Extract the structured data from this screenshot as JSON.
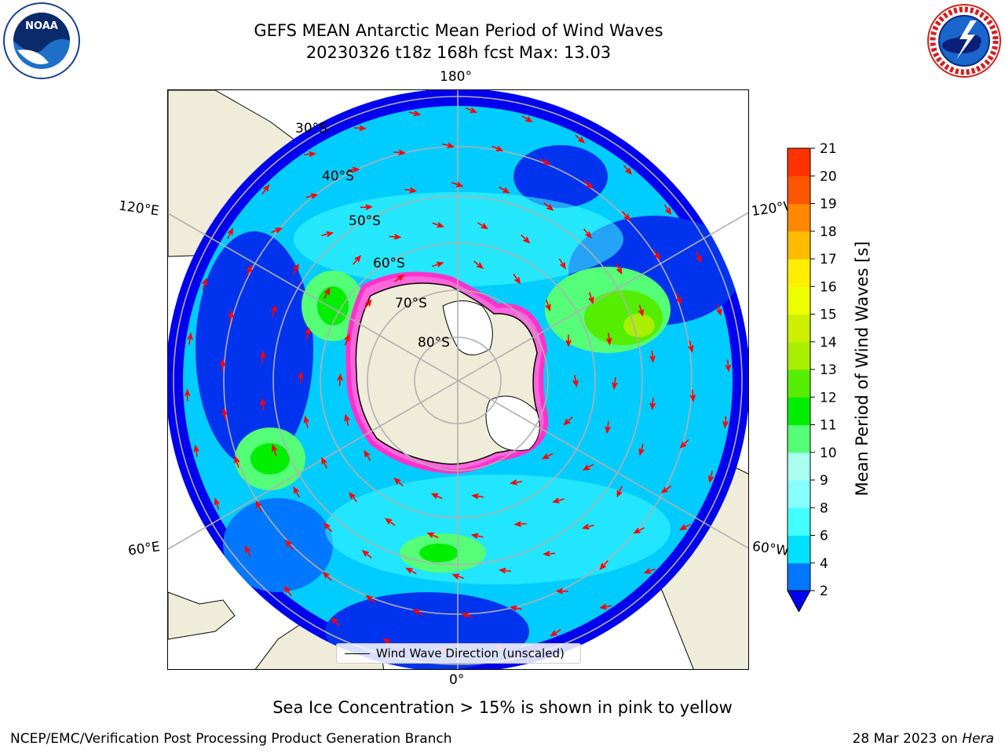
{
  "header": {
    "title_line1": "GEFS MEAN Antarctic Mean Period of Wind Waves",
    "title_line2": "20230326 t18z 168h fcst   Max: 13.03"
  },
  "logos": {
    "noaa": {
      "icon": "noaa-logo-icon",
      "text": "NOAA",
      "ring_text": "NATIONAL OCEANIC AND ATMOSPHERIC ADMINISTRATION · U.S. DEPARTMENT OF COMMERCE"
    },
    "nws": {
      "icon": "nws-logo-icon",
      "ring_text": "NATIONAL WEATHER SERVICE"
    }
  },
  "map": {
    "projection": "south polar stereographic",
    "lon_labels": {
      "top": "180°",
      "bottom": "0°",
      "left_upper": "120°E",
      "left_lower": "60°E",
      "right_upper": "120°W",
      "right_lower": "60°W"
    },
    "lat_labels": [
      "30°S",
      "40°S",
      "50°S",
      "60°S",
      "70°S",
      "80°S"
    ],
    "colors": {
      "land": "#efecd9",
      "ice_free_shelf": "#ffffff",
      "arrow": "#ff0000",
      "gridline": "#b0b0b0",
      "sea_ice_edge": "#ff33cc"
    },
    "legend": {
      "text": "Wind Wave Direction (unscaled)"
    }
  },
  "colorbar": {
    "label": "Mean Period of Wind Waves [s]",
    "ticks": [
      "2",
      "4",
      "6",
      "8",
      "9",
      "10",
      "11",
      "12",
      "13",
      "14",
      "15",
      "16",
      "17",
      "18",
      "19",
      "20",
      "21"
    ],
    "levels": [
      2,
      4,
      6,
      8,
      9,
      10,
      11,
      12,
      13,
      14,
      15,
      16,
      17,
      18,
      19,
      20,
      21
    ],
    "colors": [
      "#0077ff",
      "#00e0ff",
      "#44ffff",
      "#88ffff",
      "#aaffee",
      "#55ff77",
      "#00ee00",
      "#55ee00",
      "#aaee00",
      "#ccf000",
      "#eeff00",
      "#ffee00",
      "#ffbb00",
      "#ff8800",
      "#ff5500",
      "#ff3300",
      "#ff0000"
    ],
    "extend_below_color": "#0000ee"
  },
  "notes": {
    "ice": "Sea Ice Concentration > 15% is shown in pink to yellow"
  },
  "footer": {
    "left": "NCEP/EMC/Verification Post Processing Product Generation Branch",
    "right_date": "28 Mar 2023 on ",
    "right_host": "Hera"
  }
}
